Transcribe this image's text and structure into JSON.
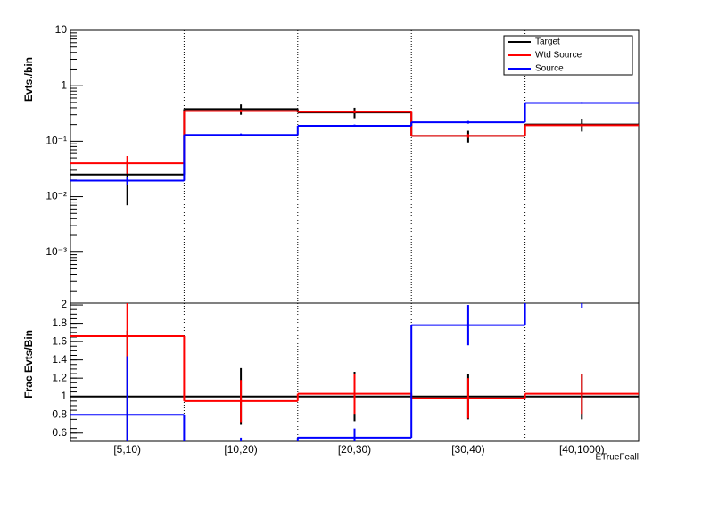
{
  "chart_data": [
    {
      "type": "step",
      "y_label": "Evts./bin",
      "log_scale": true,
      "ylim": [
        0.00012,
        10
      ],
      "yticks": [
        10,
        1,
        {
          "value": 0.1,
          "label": "10⁻¹"
        },
        {
          "value": 0.01,
          "label": "10⁻²"
        },
        {
          "value": 0.001,
          "label": "10⁻³"
        }
      ],
      "legend": "top-right",
      "series": [
        {
          "name": "Target",
          "color": "#000000",
          "values": [
            0.025,
            0.38,
            0.33,
            0.125,
            0.2
          ],
          "errors": [
            0.018,
            0.08,
            0.07,
            0.03,
            0.05
          ]
        },
        {
          "name": "Wtd Source",
          "color": "#ff0000",
          "values": [
            0.04,
            0.35,
            0.34,
            0.125,
            0.195
          ],
          "errors": [
            0.014,
            0.02,
            0.02,
            0.01,
            0.01
          ]
        },
        {
          "name": "Source",
          "color": "#0000ff",
          "values": [
            0.0195,
            0.13,
            0.19,
            0.22,
            0.49
          ],
          "errors": [
            0.003,
            0.008,
            0.01,
            0.012,
            0.02
          ]
        }
      ]
    },
    {
      "type": "step",
      "y_label": "Frac Evts/Bin",
      "x_label": "ETrueFeall",
      "log_scale": false,
      "categories": [
        "[5,10)",
        "[10,20)",
        "[20,30)",
        "[30,40)",
        "[40,1000)"
      ],
      "ylim": [
        0.51,
        2.02
      ],
      "yticks": [
        0.6,
        0.8,
        1,
        1.2,
        1.4,
        1.6,
        1.8,
        2
      ],
      "series": [
        {
          "name": "Target",
          "color": "#000000",
          "values": [
            1,
            1,
            1,
            1,
            1
          ],
          "errors": [
            0.72,
            0.31,
            0.27,
            0.25,
            0.25
          ]
        },
        {
          "name": "Wtd Source",
          "color": "#ff0000",
          "values": [
            1.66,
            0.95,
            1.03,
            0.98,
            1.03
          ],
          "errors": [
            0.36,
            0.23,
            0.22,
            0.22,
            0.22
          ]
        },
        {
          "name": "Source",
          "color": "#0000ff",
          "values": [
            0.8,
            0.5,
            0.55,
            1.78,
            2.03
          ],
          "errors": [
            0.64,
            0.05,
            0.1,
            0.22,
            0.06
          ]
        }
      ]
    }
  ]
}
